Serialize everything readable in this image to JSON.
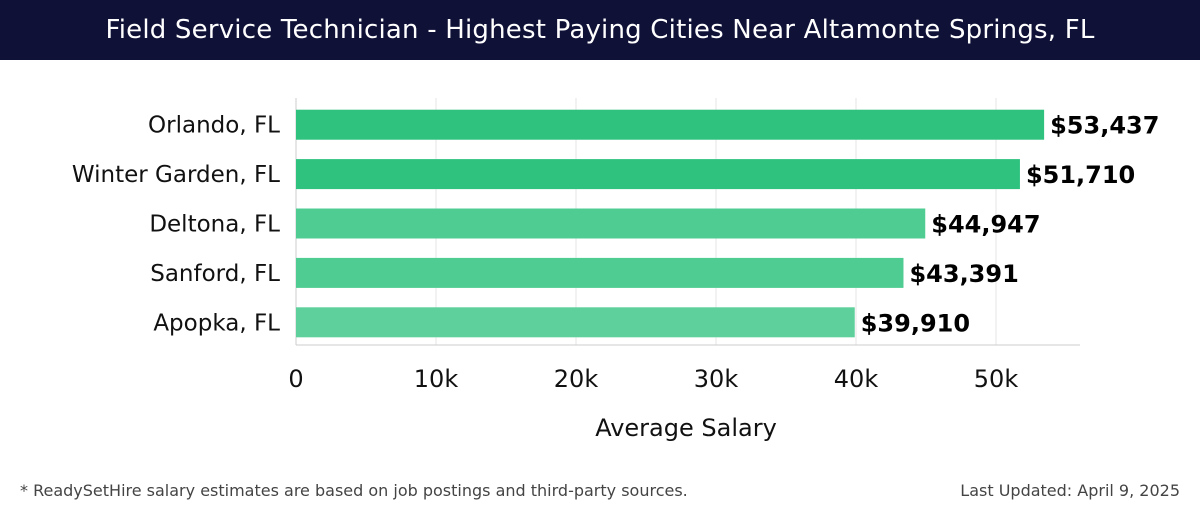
{
  "header": {
    "title": "Field Service Technician - Highest Paying Cities Near Altamonte Springs, FL"
  },
  "chart_data": {
    "type": "bar",
    "orientation": "horizontal",
    "title": "Field Service Technician - Highest Paying Cities Near Altamonte Springs, FL",
    "xlabel": "Average Salary",
    "ylabel": "",
    "categories": [
      "Orlando, FL",
      "Winter Garden, FL",
      "Deltona, FL",
      "Sanford, FL",
      "Apopka, FL"
    ],
    "values": [
      53437,
      51710,
      44947,
      43391,
      39910
    ],
    "value_labels": [
      "$53,437",
      "$51,710",
      "$44,947",
      "$43,391",
      "$39,910"
    ],
    "xlim": [
      0,
      56000
    ],
    "x_ticks": [
      0,
      10000,
      20000,
      30000,
      40000,
      50000
    ],
    "x_tick_labels": [
      "0",
      "10k",
      "20k",
      "30k",
      "40k",
      "50k"
    ],
    "grid": "vertical",
    "bar_colors": [
      "#2ec27e",
      "#2ec27e",
      "#4fcc91",
      "#4fcc91",
      "#5dd09b"
    ]
  },
  "footer": {
    "note": "* ReadySetHire salary estimates are based on job postings and third-party sources.",
    "last_updated": "Last Updated: April 9, 2025"
  }
}
